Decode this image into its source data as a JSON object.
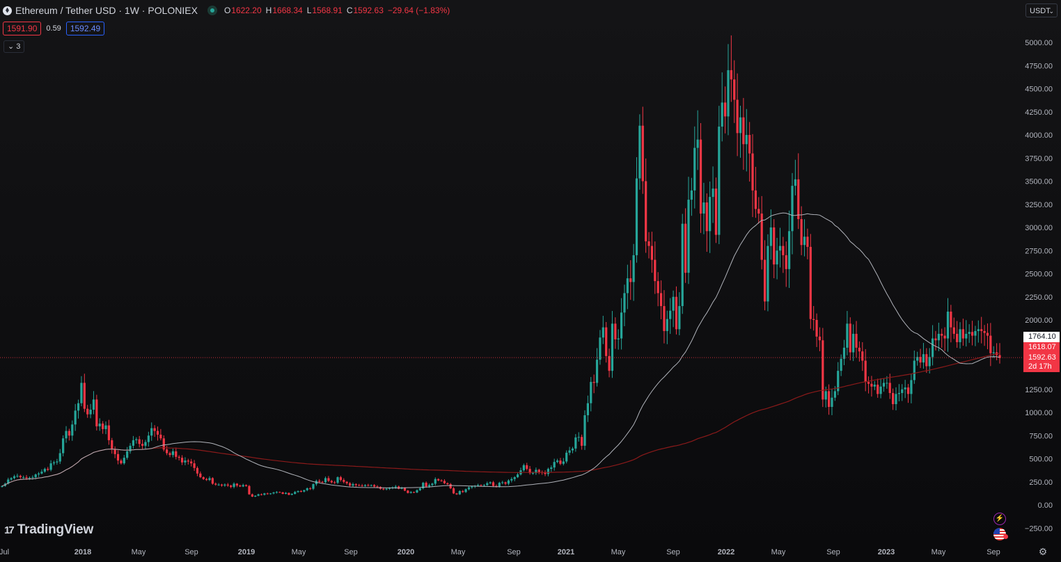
{
  "header": {
    "symbol": "Ethereum / Tether USD · 1W · POLONIEX",
    "ohlc": {
      "o_label": "O",
      "o": "1622.20",
      "h_label": "H",
      "h": "1668.34",
      "l_label": "L",
      "l": "1568.91",
      "c_label": "C",
      "c": "1592.63"
    },
    "change": "−29.64 (−1.83%)",
    "bid": "1591.90",
    "spread": "0.59",
    "ask": "1592.49",
    "indicators_toggle": "3",
    "currency": "USDT"
  },
  "branding": {
    "logo_text": "TradingView",
    "logo_mark": "17"
  },
  "price_labels": {
    "ma_slow": "1764.10",
    "ma_fast": "1618.07",
    "last": "1592.63",
    "countdown": "2d 17h"
  },
  "colors": {
    "up": "#26a69a",
    "down": "#f23645",
    "ma1": "#b0b3ba",
    "ma2": "#8b1a1a",
    "grid": "#1c1c20",
    "axis_text": "#b2b5be",
    "last_line": "#f23645"
  },
  "icons": [
    "ethereum-coin-icon",
    "live-status-icon",
    "chevron-down-icon",
    "lightning-icon",
    "us-flag-icon",
    "settings-gear-icon"
  ],
  "chart_data": {
    "type": "candlestick",
    "title": "Ethereum / Tether USD · 1W · POLONIEX",
    "timeframe": "1W",
    "xlabel": "",
    "ylabel": "",
    "ylim": [
      -250,
      5000
    ],
    "x_tick_labels": [
      "Jul",
      "2018",
      "May",
      "Sep",
      "2019",
      "May",
      "Sep",
      "2020",
      "May",
      "Sep",
      "2021",
      "May",
      "Sep",
      "2022",
      "May",
      "Sep",
      "2023",
      "May",
      "Sep"
    ],
    "y_ticks": [
      -250,
      0,
      250,
      500,
      750,
      1000,
      1250,
      1500,
      1750,
      2000,
      2250,
      2500,
      2750,
      3000,
      3250,
      3500,
      3750,
      4000,
      4250,
      4500,
      4750,
      5000
    ],
    "y_tick_labels": [
      "−250.00",
      "0.00",
      "250.00",
      "500.00",
      "750.00",
      "1000.00",
      "1250.00",
      "1500.00",
      "1750.00",
      "2000.00",
      "2250.00",
      "2500.00",
      "2750.00",
      "3000.00",
      "3250.00",
      "3500.00",
      "3750.00",
      "4000.00",
      "4250.00",
      "4500.00",
      "4750.00",
      "5000.00"
    ],
    "grid": false,
    "last_price": 1592.63,
    "closes_weekly": [
      205,
      230,
      275,
      290,
      310,
      315,
      300,
      300,
      290,
      295,
      300,
      330,
      340,
      360,
      390,
      380,
      450,
      460,
      470,
      560,
      720,
      800,
      750,
      870,
      1020,
      1100,
      1320,
      1040,
      980,
      1030,
      1140,
      850,
      880,
      820,
      860,
      700,
      600,
      550,
      480,
      450,
      510,
      580,
      640,
      700,
      710,
      660,
      640,
      680,
      750,
      830,
      800,
      760,
      720,
      600,
      560,
      540,
      580,
      520,
      510,
      460,
      480,
      470,
      450,
      400,
      340,
      300,
      280,
      270,
      290,
      230,
      220,
      220,
      210,
      220,
      210,
      195,
      230,
      210,
      200,
      215,
      205,
      115,
      90,
      100,
      115,
      110,
      125,
      120,
      125,
      135,
      140,
      135,
      120,
      130,
      110,
      120,
      140,
      150,
      145,
      160,
      180,
      175,
      225,
      260,
      250,
      245,
      290,
      260,
      245,
      240,
      300,
      270,
      250,
      235,
      210,
      225,
      215,
      210,
      205,
      215,
      210,
      215,
      200,
      195,
      175,
      170,
      175,
      185,
      190,
      200,
      175,
      185,
      155,
      130,
      140,
      135,
      160,
      180,
      240,
      200,
      215,
      230,
      280,
      265,
      260,
      235,
      225,
      180,
      125,
      115,
      150,
      140,
      170,
      190,
      200,
      205,
      215,
      210,
      215,
      235,
      245,
      205,
      200,
      240,
      245,
      230,
      265,
      280,
      300,
      330,
      375,
      430,
      390,
      345,
      345,
      380,
      355,
      350,
      335,
      390,
      405,
      465,
      480,
      445,
      470,
      565,
      590,
      610,
      730,
      735,
      640,
      970,
      1100,
      1330,
      1320,
      1570,
      1810,
      1920,
      1610,
      1450,
      1960,
      1790,
      1800,
      2080,
      2290,
      2450,
      2410,
      2700,
      3530,
      4100,
      3500,
      2850,
      2800,
      2650,
      2420,
      2290,
      2150,
      1880,
      2010,
      2100,
      2250,
      1900,
      2150,
      3040,
      2510,
      3300,
      3400,
      3860,
      3950,
      3150,
      3270,
      2960,
      3330,
      3420,
      2920,
      4090,
      4350,
      4200,
      4700,
      4600,
      4380,
      4020,
      4190,
      3900,
      4000,
      3800,
      3400,
      3200,
      3150,
      2650,
      2200,
      2800,
      3000,
      2600,
      2750,
      2800,
      2700,
      2550,
      2960,
      3450,
      3520,
      3090,
      2810,
      2900,
      2790,
      2010,
      2000,
      1820,
      1780,
      1140,
      1230,
      1060,
      1160,
      1230,
      1450,
      1580,
      1700,
      1960,
      1650,
      1850,
      1700,
      1660,
      1560,
      1330,
      1310,
      1280,
      1300,
      1200,
      1280,
      1320,
      1320,
      1210,
      1090,
      1200,
      1210,
      1250,
      1270,
      1200,
      1350,
      1560,
      1600,
      1540,
      1630,
      1500,
      1600,
      1800,
      1780,
      1850,
      1830,
      1800,
      2090,
      1920,
      1850,
      1760,
      1900,
      1800,
      1850,
      1870,
      1830,
      1880,
      1900,
      1880,
      1860,
      1830,
      1640,
      1650,
      1620,
      1590
    ],
    "series": [
      {
        "name": "",
        "kind": "moving-average",
        "color": "#b0b3ba",
        "last_value": 1764.1
      },
      {
        "name": "",
        "kind": "moving-average",
        "color": "#8b1a1a",
        "last_value": 1618.07
      }
    ]
  }
}
